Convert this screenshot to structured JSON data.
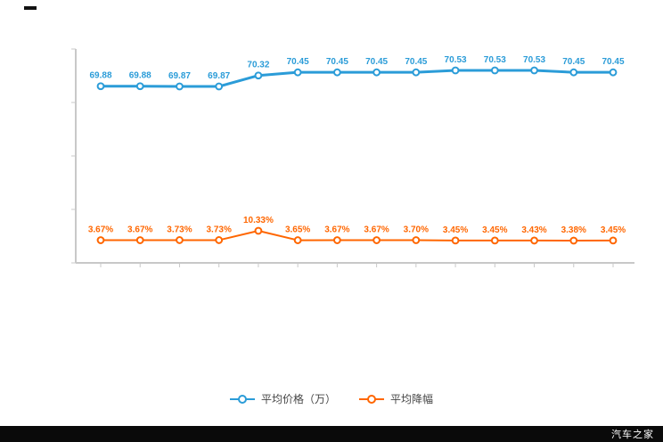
{
  "page": {
    "background": "#ffffff"
  },
  "footer": {
    "brand": "汽车之家",
    "bar_color": "#0a0a0a",
    "text_color": "#ffffff"
  },
  "chart_data": {
    "type": "line",
    "title": "",
    "xlabel": "",
    "ylabel": "",
    "grid": false,
    "legend_position": "bottom",
    "x_axis_tick_labels_visible": false,
    "y_axis_tick_labels_visible": false,
    "point_count": 14,
    "series": [
      {
        "name": "平均价格（万）",
        "color": "#2b9cd8",
        "values": [
          69.88,
          69.88,
          69.87,
          69.87,
          70.32,
          70.45,
          70.45,
          70.45,
          70.45,
          70.53,
          70.53,
          70.53,
          70.45,
          70.45
        ],
        "labels": [
          "69.88",
          "69.88",
          "69.87",
          "69.87",
          "70.32",
          "70.45",
          "70.45",
          "70.45",
          "70.45",
          "70.53",
          "70.53",
          "70.53",
          "70.45",
          "70.45"
        ]
      },
      {
        "name": "平均降幅",
        "color": "#ff6600",
        "values": [
          3.67,
          3.67,
          3.73,
          3.73,
          10.33,
          3.65,
          3.67,
          3.67,
          3.7,
          3.45,
          3.45,
          3.43,
          3.38,
          3.45
        ],
        "labels": [
          "3.67%",
          "3.67%",
          "3.73%",
          "3.73%",
          "10.33%",
          "3.65%",
          "3.67%",
          "3.67%",
          "3.70%",
          "3.45%",
          "3.45%",
          "3.43%",
          "3.38%",
          "3.45%"
        ]
      }
    ],
    "axis_color": "#c8c8c8"
  }
}
